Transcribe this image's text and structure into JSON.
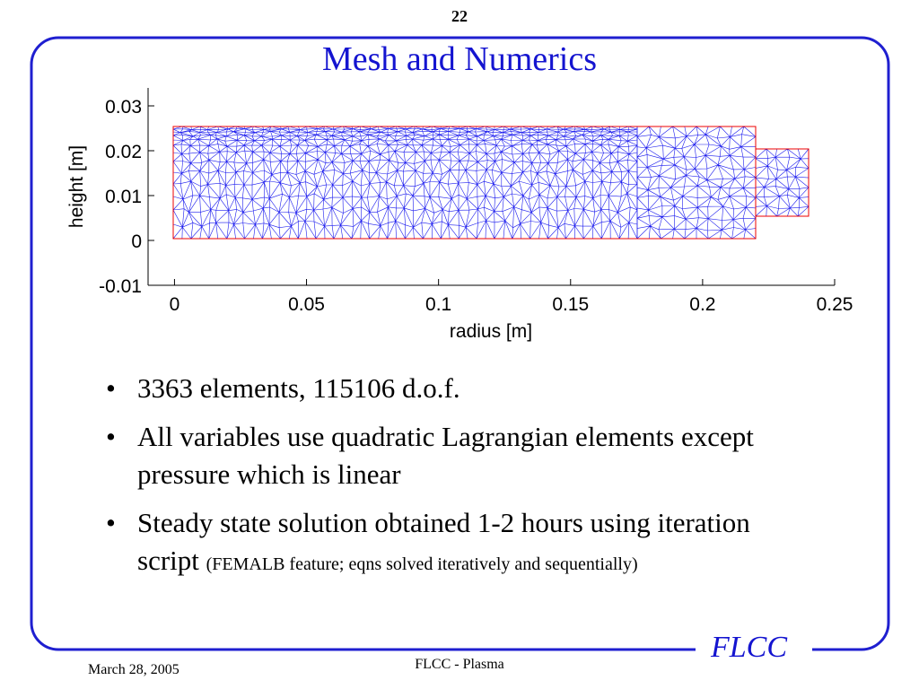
{
  "page_number": "22",
  "title": "Mesh and Numerics",
  "figure": {
    "xlabel": "radius [m]",
    "ylabel": "height [m]",
    "xlim": [
      -0.01,
      0.25
    ],
    "ylim": [
      -0.01,
      0.034
    ],
    "xticks": [
      0,
      0.05,
      0.1,
      0.15,
      0.2,
      0.25
    ],
    "yticks": [
      0.03,
      0.02,
      0.01,
      0,
      -0.01
    ]
  },
  "bullets": [
    {
      "text": "3363 elements, 115106 d.o.f."
    },
    {
      "text": "All variables use quadratic Lagrangian elements except pressure which is linear"
    },
    {
      "text": "Steady state solution obtained 1-2 hours using iteration script",
      "note": "(FEMALB feature; eqns solved iteratively and sequentially)"
    }
  ],
  "footer": {
    "date": "March 28, 2005",
    "center": "FLCC - Plasma",
    "logo": "FLCC"
  }
}
